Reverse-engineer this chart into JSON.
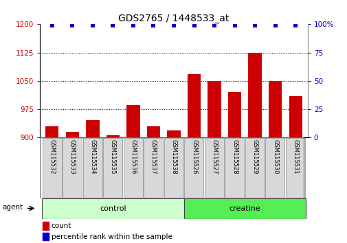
{
  "title": "GDS2765 / 1448533_at",
  "samples": [
    "GSM115532",
    "GSM115533",
    "GSM115534",
    "GSM115535",
    "GSM115536",
    "GSM115537",
    "GSM115538",
    "GSM115526",
    "GSM115527",
    "GSM115528",
    "GSM115529",
    "GSM115530",
    "GSM115531"
  ],
  "counts": [
    930,
    915,
    945,
    905,
    985,
    930,
    918,
    1068,
    1050,
    1020,
    1125,
    1050,
    1010
  ],
  "percentiles": [
    99,
    99,
    99,
    99,
    99,
    99,
    99,
    99,
    99,
    99,
    99,
    99,
    99
  ],
  "groups": [
    {
      "label": "control",
      "start": 0,
      "end": 7,
      "color": "#ccffcc"
    },
    {
      "label": "creatine",
      "start": 7,
      "end": 13,
      "color": "#55ee55"
    }
  ],
  "bar_color": "#cc0000",
  "scatter_color": "#0000cc",
  "ylim_left": [
    900,
    1200
  ],
  "ylim_right": [
    0,
    100
  ],
  "yticks_left": [
    900,
    975,
    1050,
    1125,
    1200
  ],
  "yticks_right": [
    0,
    25,
    50,
    75,
    100
  ],
  "background_color": "#ffffff",
  "agent_label": "agent",
  "legend_count_label": "count",
  "legend_pct_label": "percentile rank within the sample",
  "title_fontsize": 10,
  "tick_fontsize": 7.5,
  "axis_label_color_left": "#cc0000",
  "axis_label_color_right": "#0000cc",
  "label_box_color": "#d8d8d8",
  "label_box_edge": "#888888"
}
